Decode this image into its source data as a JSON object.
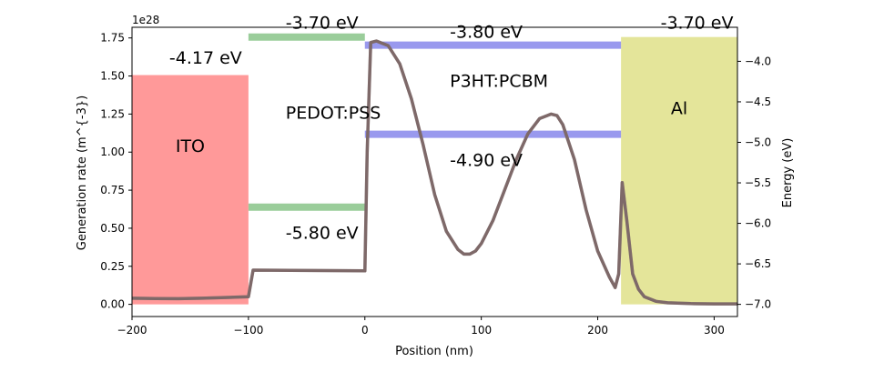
{
  "chart_data": {
    "type": "line",
    "xlabel": "Position (nm)",
    "ylabel": "Generation rate (m^{-3})",
    "ylabel_right": "Energy (eV)",
    "offset_label": "1e28",
    "xlim": [
      -200,
      320
    ],
    "ylim": [
      -0.08,
      1.82
    ],
    "ylim_right": [
      -7.15,
      -3.58
    ],
    "x_ticks": [
      -200,
      -100,
      0,
      100,
      200,
      300
    ],
    "x_tick_labels": [
      "−200",
      "−100",
      "0",
      "100",
      "200",
      "300"
    ],
    "y_ticks": [
      0.0,
      0.25,
      0.5,
      0.75,
      1.0,
      1.25,
      1.5,
      1.75
    ],
    "y_tick_labels": [
      "0.00",
      "0.25",
      "0.50",
      "0.75",
      "1.00",
      "1.25",
      "1.50",
      "1.75"
    ],
    "y_right_ticks": [
      -7.0,
      -6.5,
      -6.0,
      -5.5,
      -5.0,
      -4.5,
      -4.0
    ],
    "y_right_tick_labels": [
      "−7.0",
      "−6.5",
      "−6.0",
      "−5.5",
      "−5.0",
      "−4.5",
      "−4.0"
    ],
    "generation_rate": {
      "color": "#808080",
      "x": [
        -200,
        -180,
        -160,
        -140,
        -120,
        -100,
        -96,
        0,
        2,
        5,
        10,
        20,
        30,
        40,
        50,
        60,
        70,
        80,
        85,
        90,
        95,
        100,
        110,
        120,
        130,
        140,
        150,
        160,
        165,
        170,
        180,
        190,
        200,
        210,
        215,
        218,
        221,
        225,
        230,
        235,
        240,
        250,
        260,
        280,
        300,
        320
      ],
      "y": [
        0.04,
        0.038,
        0.037,
        0.04,
        0.045,
        0.05,
        0.225,
        0.22,
        1.0,
        1.72,
        1.73,
        1.7,
        1.58,
        1.35,
        1.05,
        0.72,
        0.48,
        0.36,
        0.33,
        0.33,
        0.35,
        0.4,
        0.55,
        0.75,
        0.95,
        1.12,
        1.22,
        1.25,
        1.24,
        1.18,
        0.95,
        0.62,
        0.35,
        0.18,
        0.11,
        0.2,
        0.8,
        0.55,
        0.2,
        0.1,
        0.05,
        0.02,
        0.01,
        0.005,
        0.003,
        0.003
      ]
    },
    "layers": [
      {
        "name": "ITO",
        "x_start": -200,
        "x_end": -100,
        "color": "#ff9999",
        "label_y": 1.0
      },
      {
        "name": "PEDOT:PSS",
        "x_start": -100,
        "x_end": 0,
        "color": null,
        "label_y": 1.22
      },
      {
        "name": "P3HT:PCBM",
        "x_start": 0,
        "x_end": 220,
        "color": null,
        "label_y": 1.43
      },
      {
        "name": "Al",
        "x_start": 220,
        "x_end": 320,
        "color": "#e4e59a",
        "label_y": 1.25
      }
    ],
    "energy_levels": [
      {
        "label": "-4.17 eV",
        "energy": -4.17,
        "x_start": -200,
        "x_end": -100,
        "color": "#ff9999",
        "label_x": -168,
        "label_y": 1.58,
        "type": "work_function"
      },
      {
        "label": "-3.70 eV",
        "energy": -3.7,
        "x_start": -100,
        "x_end": 0,
        "color": "#9acd9a",
        "label_x": -68,
        "label_y": 1.81,
        "type": "band"
      },
      {
        "label": "-5.80 eV",
        "energy": -5.8,
        "x_start": -100,
        "x_end": 0,
        "color": "#9acd9a",
        "label_x": -68,
        "label_y": 0.43,
        "type": "band"
      },
      {
        "label": "-3.80 eV",
        "energy": -3.8,
        "x_start": 0,
        "x_end": 220,
        "color": "#9999ee",
        "label_x": 73,
        "label_y": 1.75,
        "type": "band"
      },
      {
        "label": "-4.90 eV",
        "energy": -4.9,
        "x_start": 0,
        "x_end": 220,
        "color": "#9999ee",
        "label_x": 73,
        "label_y": 0.91,
        "type": "band"
      },
      {
        "label": "-3.70 eV",
        "energy": -3.7,
        "x_start": 220,
        "x_end": 320,
        "color": "#e4e59a",
        "label_x": 254,
        "label_y": 1.81,
        "type": "work_function"
      }
    ]
  }
}
